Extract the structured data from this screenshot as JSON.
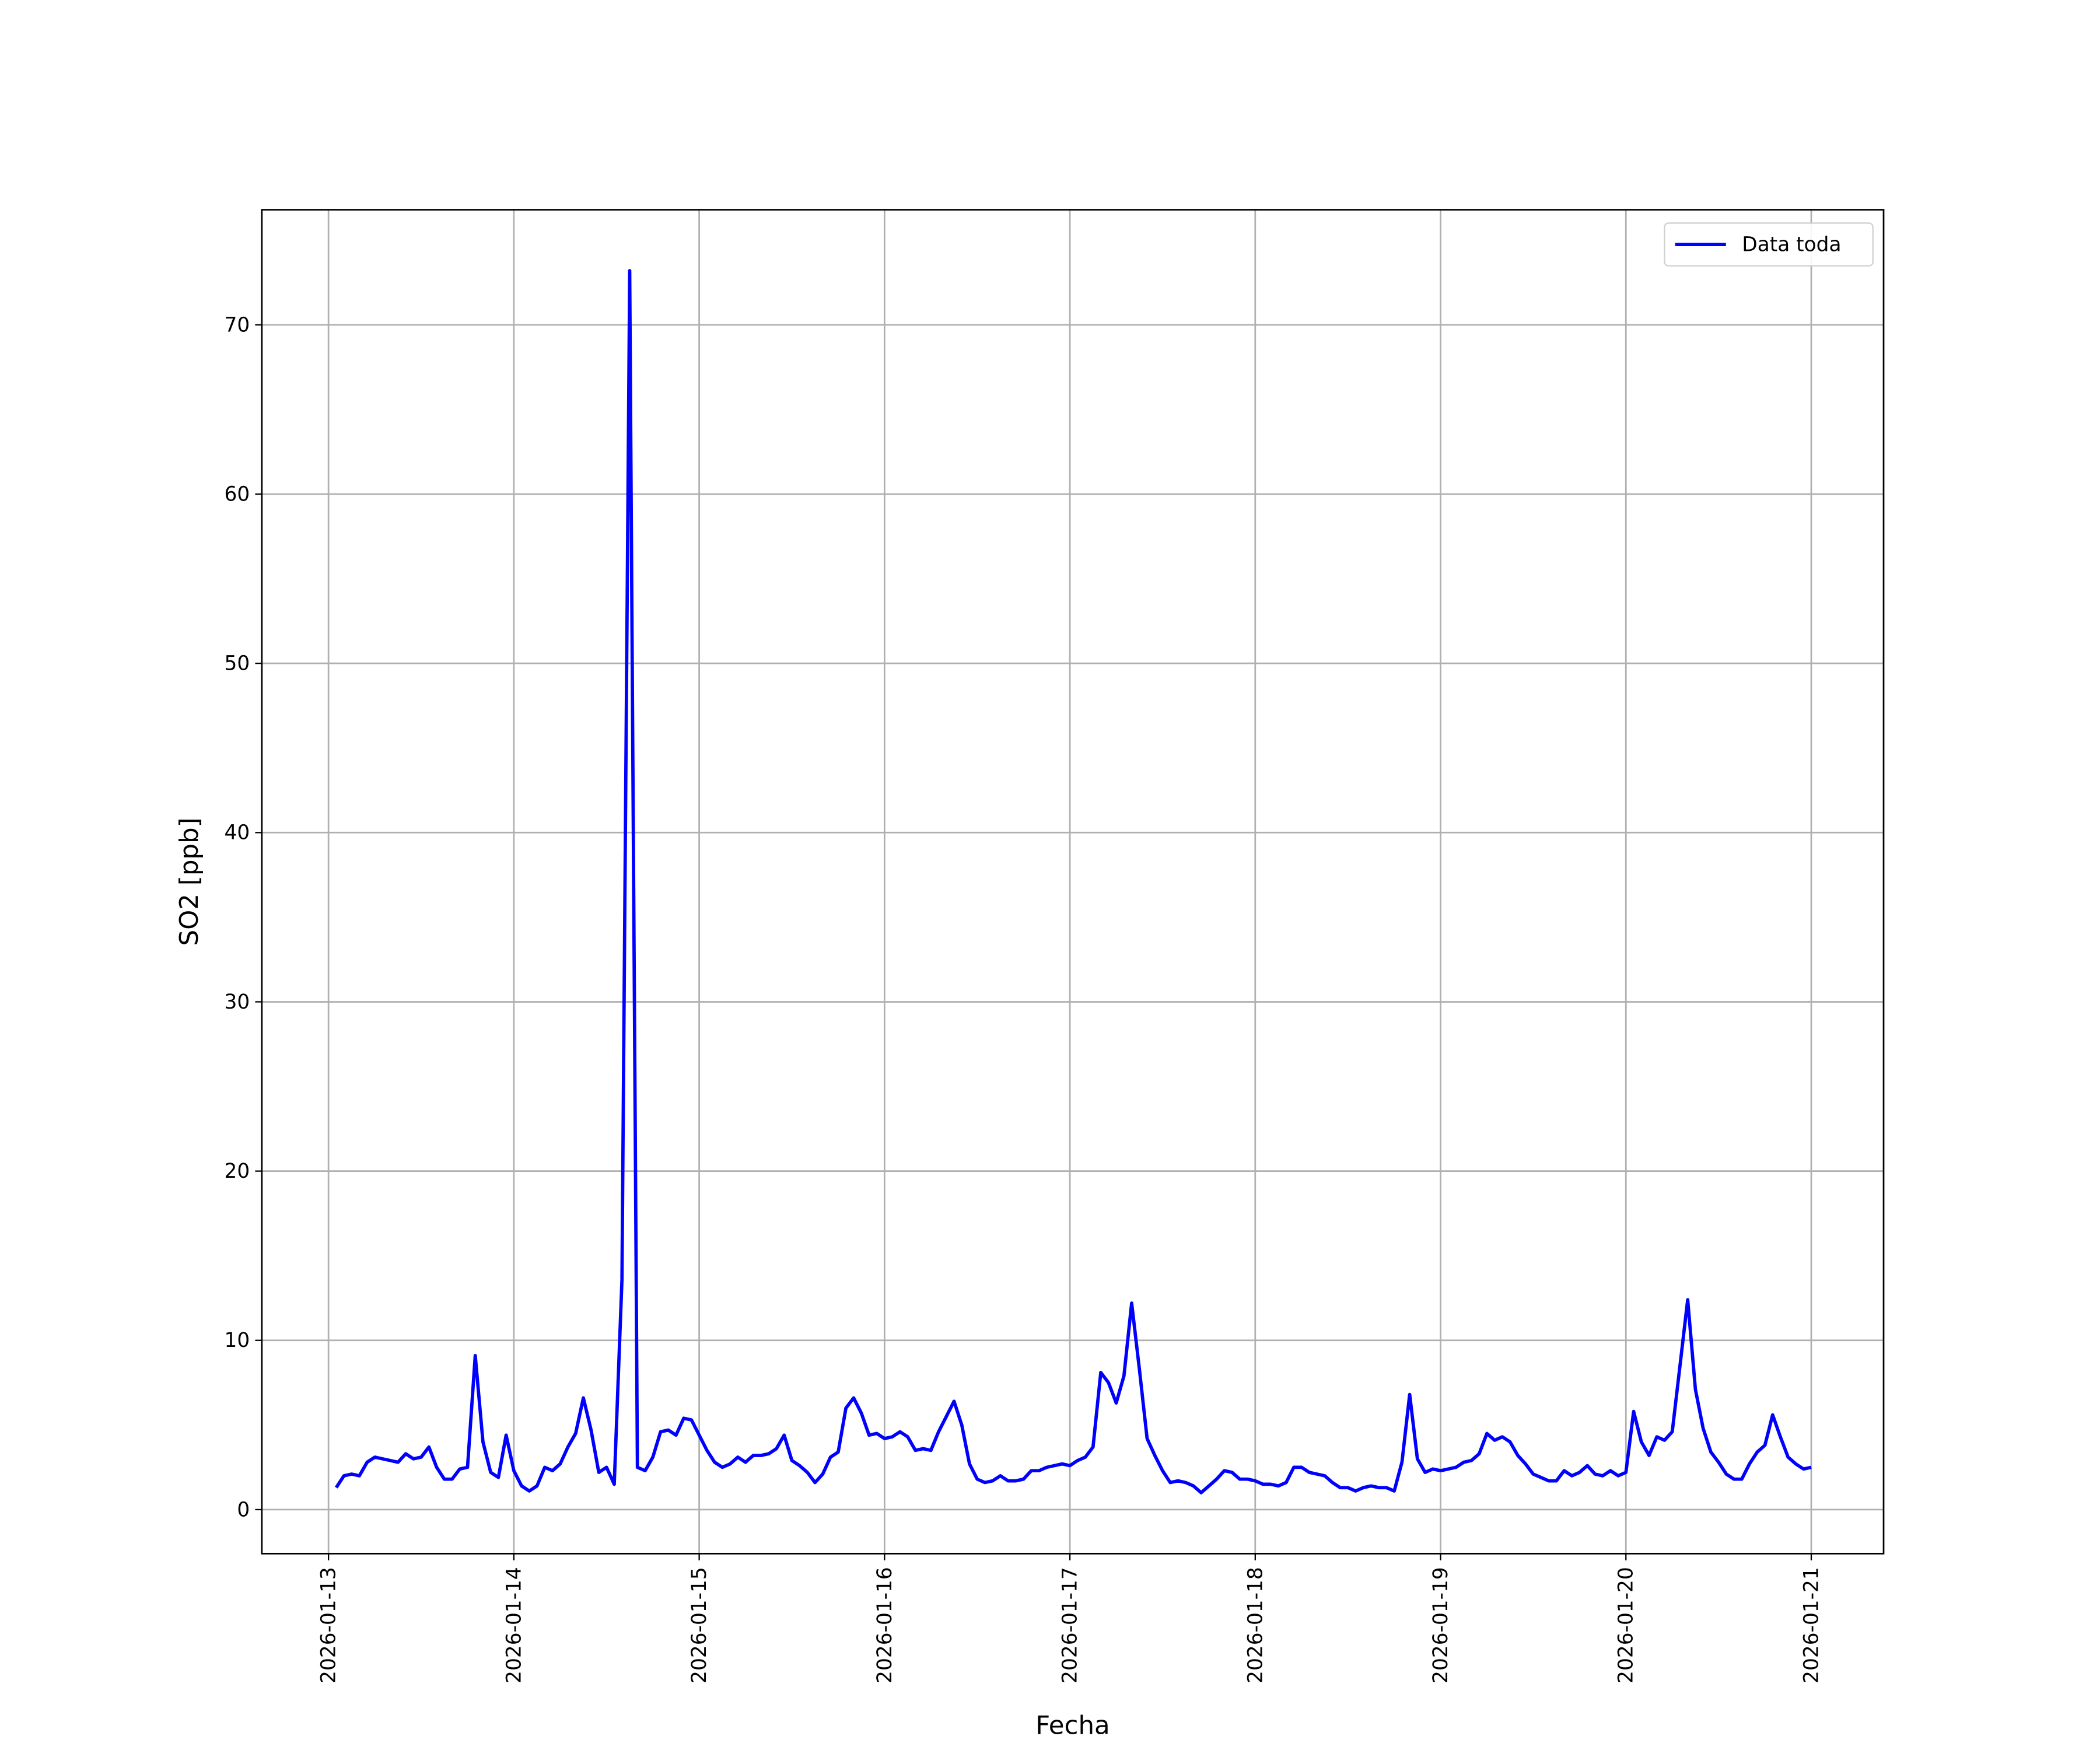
{
  "chart_data": {
    "type": "line",
    "xlabel": "Fecha",
    "ylabel": "SO2 [ppb]",
    "xlim": [
      "2026-01-12 15:22",
      "2026-01-21 09:22"
    ],
    "xticks": [
      "2026-01-13",
      "2026-01-14",
      "2026-01-15",
      "2026-01-16",
      "2026-01-17",
      "2026-01-18",
      "2026-01-19",
      "2026-01-20",
      "2026-01-21"
    ],
    "ylim": [
      -2.6,
      76.8
    ],
    "yticks": [
      0,
      10,
      20,
      30,
      40,
      50,
      60,
      70
    ],
    "grid": true,
    "legend": "upper right",
    "x": [
      "2026-01-13 01:00",
      "2026-01-13 02:00",
      "2026-01-13 03:00",
      "2026-01-13 04:00",
      "2026-01-13 05:00",
      "2026-01-13 06:00",
      "2026-01-13 07:00",
      "2026-01-13 08:00",
      "2026-01-13 09:00",
      "2026-01-13 10:00",
      "2026-01-13 11:00",
      "2026-01-13 12:00",
      "2026-01-13 13:00",
      "2026-01-13 14:00",
      "2026-01-13 15:00",
      "2026-01-13 16:00",
      "2026-01-13 17:00",
      "2026-01-13 18:00",
      "2026-01-13 19:00",
      "2026-01-13 20:00",
      "2026-01-13 21:00",
      "2026-01-13 22:00",
      "2026-01-13 23:00",
      "2026-01-14 00:00",
      "2026-01-14 01:00",
      "2026-01-14 02:00",
      "2026-01-14 03:00",
      "2026-01-14 04:00",
      "2026-01-14 05:00",
      "2026-01-14 06:00",
      "2026-01-14 07:00",
      "2026-01-14 08:00",
      "2026-01-14 09:00",
      "2026-01-14 10:00",
      "2026-01-14 11:00",
      "2026-01-14 12:00",
      "2026-01-14 13:00",
      "2026-01-14 14:00",
      "2026-01-14 15:00",
      "2026-01-14 16:00",
      "2026-01-14 17:00",
      "2026-01-14 18:00",
      "2026-01-14 19:00",
      "2026-01-14 20:00",
      "2026-01-14 21:00",
      "2026-01-14 22:00",
      "2026-01-14 23:00",
      "2026-01-15 00:00",
      "2026-01-15 01:00",
      "2026-01-15 02:00",
      "2026-01-15 03:00",
      "2026-01-15 04:00",
      "2026-01-15 05:00",
      "2026-01-15 06:00",
      "2026-01-15 07:00",
      "2026-01-15 08:00",
      "2026-01-15 09:00",
      "2026-01-15 10:00",
      "2026-01-15 11:00",
      "2026-01-15 12:00",
      "2026-01-15 13:00",
      "2026-01-15 14:00",
      "2026-01-15 15:00",
      "2026-01-15 16:00",
      "2026-01-15 17:00",
      "2026-01-15 18:00",
      "2026-01-15 19:00",
      "2026-01-15 20:00",
      "2026-01-15 21:00",
      "2026-01-15 22:00",
      "2026-01-15 23:00",
      "2026-01-16 00:00",
      "2026-01-16 01:00",
      "2026-01-16 02:00",
      "2026-01-16 03:00",
      "2026-01-16 04:00",
      "2026-01-16 05:00",
      "2026-01-16 06:00",
      "2026-01-16 07:00",
      "2026-01-16 08:00",
      "2026-01-16 09:00",
      "2026-01-16 10:00",
      "2026-01-16 11:00",
      "2026-01-16 12:00",
      "2026-01-16 13:00",
      "2026-01-16 14:00",
      "2026-01-16 15:00",
      "2026-01-16 16:00",
      "2026-01-16 17:00",
      "2026-01-16 18:00",
      "2026-01-16 19:00",
      "2026-01-16 20:00",
      "2026-01-16 21:00",
      "2026-01-16 22:00",
      "2026-01-16 23:00",
      "2026-01-17 00:00",
      "2026-01-17 01:00",
      "2026-01-17 02:00",
      "2026-01-17 03:00",
      "2026-01-17 04:00",
      "2026-01-17 05:00",
      "2026-01-17 06:00",
      "2026-01-17 07:00",
      "2026-01-17 08:00",
      "2026-01-17 09:00",
      "2026-01-17 10:00",
      "2026-01-17 11:00",
      "2026-01-17 12:00",
      "2026-01-17 13:00",
      "2026-01-17 14:00",
      "2026-01-17 15:00",
      "2026-01-17 16:00",
      "2026-01-17 17:00",
      "2026-01-17 18:00",
      "2026-01-17 19:00",
      "2026-01-17 20:00",
      "2026-01-17 21:00",
      "2026-01-17 22:00",
      "2026-01-17 23:00",
      "2026-01-18 00:00",
      "2026-01-18 01:00",
      "2026-01-18 02:00",
      "2026-01-18 03:00",
      "2026-01-18 04:00",
      "2026-01-18 05:00",
      "2026-01-18 06:00",
      "2026-01-18 07:00",
      "2026-01-18 08:00",
      "2026-01-18 09:00",
      "2026-01-18 10:00",
      "2026-01-18 11:00",
      "2026-01-18 12:00",
      "2026-01-18 13:00",
      "2026-01-18 14:00",
      "2026-01-18 15:00",
      "2026-01-18 16:00",
      "2026-01-18 17:00",
      "2026-01-18 18:00",
      "2026-01-18 19:00",
      "2026-01-18 20:00",
      "2026-01-18 21:00",
      "2026-01-18 22:00",
      "2026-01-18 23:00",
      "2026-01-19 00:00",
      "2026-01-19 01:00",
      "2026-01-19 02:00",
      "2026-01-19 03:00",
      "2026-01-19 04:00",
      "2026-01-19 05:00",
      "2026-01-19 06:00",
      "2026-01-19 07:00",
      "2026-01-19 08:00",
      "2026-01-19 09:00",
      "2026-01-19 10:00",
      "2026-01-19 11:00",
      "2026-01-19 12:00",
      "2026-01-19 13:00",
      "2026-01-19 14:00",
      "2026-01-19 15:00",
      "2026-01-19 16:00",
      "2026-01-19 17:00",
      "2026-01-19 18:00",
      "2026-01-19 19:00",
      "2026-01-19 20:00",
      "2026-01-19 21:00",
      "2026-01-19 22:00",
      "2026-01-19 23:00",
      "2026-01-20 00:00",
      "2026-01-20 01:00",
      "2026-01-20 02:00",
      "2026-01-20 03:00",
      "2026-01-20 04:00",
      "2026-01-20 05:00",
      "2026-01-20 06:00",
      "2026-01-20 07:00",
      "2026-01-20 08:00",
      "2026-01-20 09:00",
      "2026-01-20 10:00",
      "2026-01-20 11:00",
      "2026-01-20 12:00",
      "2026-01-20 13:00",
      "2026-01-20 14:00",
      "2026-01-20 15:00",
      "2026-01-20 16:00",
      "2026-01-20 17:00",
      "2026-01-20 18:00",
      "2026-01-20 19:00",
      "2026-01-20 20:00",
      "2026-01-20 21:00",
      "2026-01-20 22:00",
      "2026-01-20 23:00",
      "2026-01-21 00:00"
    ],
    "series": [
      {
        "name": "Data toda",
        "color": "#0000ff",
        "values": [
          1.3,
          2.0,
          2.1,
          2.0,
          2.8,
          3.1,
          3.0,
          2.9,
          2.8,
          3.3,
          3.0,
          3.1,
          3.7,
          2.5,
          1.8,
          1.8,
          2.4,
          2.5,
          9.1,
          4.0,
          2.2,
          1.9,
          4.4,
          2.3,
          1.4,
          1.1,
          1.4,
          2.5,
          2.3,
          2.7,
          3.7,
          4.5,
          6.6,
          4.7,
          2.2,
          2.5,
          1.5,
          13.6,
          73.2,
          2.5,
          2.3,
          3.1,
          4.6,
          4.7,
          4.4,
          5.4,
          5.3,
          4.4,
          3.5,
          2.8,
          2.5,
          2.7,
          3.1,
          2.8,
          3.2,
          3.2,
          3.3,
          3.6,
          4.4,
          2.9,
          2.6,
          2.2,
          1.6,
          2.1,
          3.1,
          3.4,
          6.0,
          6.6,
          5.7,
          4.4,
          4.5,
          4.2,
          4.3,
          4.6,
          4.3,
          3.5,
          3.6,
          3.5,
          4.6,
          5.5,
          6.4,
          5.0,
          2.7,
          1.8,
          1.6,
          1.7,
          2.0,
          1.7,
          1.7,
          1.8,
          2.3,
          2.3,
          2.5,
          2.6,
          2.7,
          2.6,
          2.9,
          3.1,
          3.7,
          8.1,
          7.5,
          6.3,
          7.9,
          12.2,
          8.3,
          4.2,
          3.2,
          2.3,
          1.6,
          1.7,
          1.6,
          1.4,
          1.0,
          1.4,
          1.8,
          2.3,
          2.2,
          1.8,
          1.8,
          1.7,
          1.5,
          1.5,
          1.4,
          1.6,
          2.5,
          2.5,
          2.2,
          2.1,
          2.0,
          1.6,
          1.3,
          1.3,
          1.1,
          1.3,
          1.4,
          1.3,
          1.3,
          1.1,
          2.8,
          6.8,
          3.0,
          2.2,
          2.4,
          2.3,
          2.4,
          2.5,
          2.8,
          2.9,
          3.3,
          4.5,
          4.1,
          4.3,
          4.0,
          3.2,
          2.7,
          2.1,
          1.9,
          1.7,
          1.7,
          2.3,
          2.0,
          2.2,
          2.6,
          2.1,
          2.0,
          2.3,
          2.0,
          2.2,
          5.8,
          4.0,
          3.2,
          4.3,
          4.1,
          4.6,
          8.5,
          12.4,
          7.1,
          4.8,
          3.4,
          2.8,
          2.1,
          1.8,
          1.8,
          2.7,
          3.4,
          3.8,
          5.6,
          4.3,
          3.1,
          2.7,
          2.4,
          2.5
        ]
      }
    ]
  }
}
